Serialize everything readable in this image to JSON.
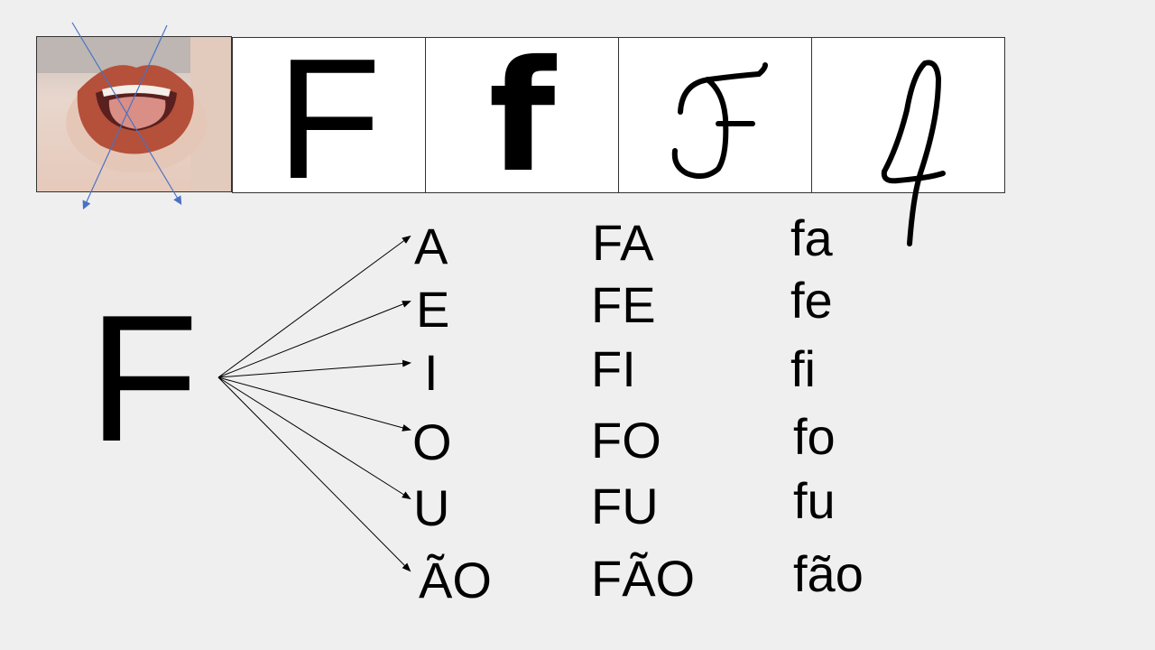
{
  "header": {
    "photo": {
      "description_icon": "open-mouth-tongue-photo"
    },
    "cells": [
      {
        "kind": "print-upper",
        "glyph": "F"
      },
      {
        "kind": "print-lower",
        "glyph": "f"
      },
      {
        "kind": "cursive-upper",
        "glyph": "F",
        "icon": "cursive-capital-f-icon"
      },
      {
        "kind": "cursive-lower",
        "glyph": "f",
        "icon": "cursive-lower-f-icon"
      }
    ]
  },
  "main": {
    "consonant": "F",
    "vowels": [
      "A",
      "E",
      "I",
      "O",
      "U",
      "ÃO"
    ],
    "upper_syllables": [
      "FA",
      "FE",
      "FI",
      "FO",
      "FU",
      "FÃO"
    ],
    "lower_syllables": [
      "fa",
      "fe",
      "fi",
      "fo",
      "fu",
      "fão"
    ]
  },
  "colors": {
    "background": "#efefef",
    "cross_lines": "#4a72c4",
    "lips": "#b5503a"
  }
}
